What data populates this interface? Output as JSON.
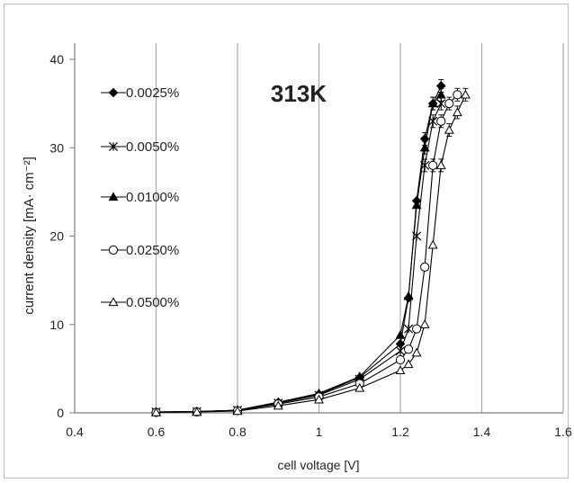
{
  "chart_data": {
    "type": "scatter",
    "title": "313K",
    "xlabel": "cell voltage [V]",
    "ylabel": "current density [mA· cm⁻²]",
    "xlim": [
      0.4,
      1.6
    ],
    "ylim": [
      0,
      40
    ],
    "x_ticks": [
      "0.4",
      "0.6",
      "0.8",
      "1",
      "1.2",
      "1.4",
      "1.6"
    ],
    "y_ticks": [
      "0",
      "10",
      "20",
      "30",
      "40"
    ],
    "grid": "vertical",
    "legend_position": "left",
    "series": [
      {
        "name": "0.0025%",
        "marker": "diamond-filled",
        "points": [
          [
            0.6,
            0.1
          ],
          [
            0.7,
            0.15
          ],
          [
            0.8,
            0.3
          ],
          [
            0.9,
            1.2
          ],
          [
            1.0,
            2.1
          ],
          [
            1.1,
            4.0
          ],
          [
            1.2,
            7.8
          ],
          [
            1.22,
            13.0
          ],
          [
            1.24,
            24.0
          ],
          [
            1.26,
            31.0
          ],
          [
            1.28,
            35.0
          ],
          [
            1.3,
            37.0
          ]
        ]
      },
      {
        "name": "0.0050%",
        "marker": "star",
        "points": [
          [
            0.6,
            0.1
          ],
          [
            0.7,
            0.15
          ],
          [
            0.8,
            0.3
          ],
          [
            0.9,
            1.1
          ],
          [
            1.0,
            2.0
          ],
          [
            1.1,
            3.8
          ],
          [
            1.2,
            7.0
          ],
          [
            1.22,
            9.5
          ],
          [
            1.24,
            20.0
          ],
          [
            1.26,
            28.0
          ],
          [
            1.28,
            33.0
          ],
          [
            1.3,
            35.0
          ]
        ]
      },
      {
        "name": "0.0100%",
        "marker": "triangle-filled",
        "points": [
          [
            0.6,
            0.1
          ],
          [
            0.7,
            0.15
          ],
          [
            0.8,
            0.3
          ],
          [
            0.9,
            1.2
          ],
          [
            1.0,
            2.2
          ],
          [
            1.1,
            4.1
          ],
          [
            1.2,
            8.8
          ],
          [
            1.22,
            13.2
          ],
          [
            1.24,
            23.5
          ],
          [
            1.26,
            30.0
          ],
          [
            1.28,
            35.0
          ],
          [
            1.3,
            36.0
          ]
        ]
      },
      {
        "name": "0.0250%",
        "marker": "circle-open",
        "points": [
          [
            0.6,
            0.05
          ],
          [
            0.7,
            0.1
          ],
          [
            0.8,
            0.25
          ],
          [
            0.9,
            1.0
          ],
          [
            1.0,
            1.8
          ],
          [
            1.1,
            3.3
          ],
          [
            1.2,
            6.0
          ],
          [
            1.22,
            7.2
          ],
          [
            1.24,
            9.5
          ],
          [
            1.26,
            16.5
          ],
          [
            1.28,
            28.0
          ],
          [
            1.3,
            33.0
          ],
          [
            1.32,
            35.0
          ],
          [
            1.34,
            36.0
          ]
        ]
      },
      {
        "name": "0.0500%",
        "marker": "triangle-open",
        "points": [
          [
            0.6,
            0.05
          ],
          [
            0.7,
            0.1
          ],
          [
            0.8,
            0.2
          ],
          [
            0.9,
            0.8
          ],
          [
            1.0,
            1.5
          ],
          [
            1.1,
            2.8
          ],
          [
            1.2,
            4.8
          ],
          [
            1.22,
            5.5
          ],
          [
            1.24,
            6.8
          ],
          [
            1.26,
            10.0
          ],
          [
            1.28,
            19.0
          ],
          [
            1.3,
            28.0
          ],
          [
            1.32,
            32.0
          ],
          [
            1.34,
            34.0
          ],
          [
            1.36,
            36.0
          ]
        ]
      }
    ]
  }
}
